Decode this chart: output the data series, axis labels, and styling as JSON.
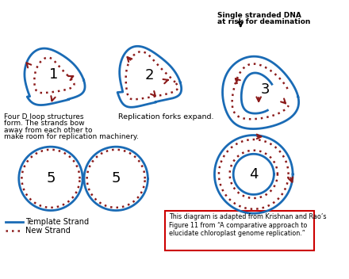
{
  "bg_color": "#ffffff",
  "blue": "#1a6bb5",
  "red": "#8b1a1a",
  "label1": "1",
  "label2": "2",
  "label3": "3",
  "label4": "4",
  "label5a": "5",
  "label5b": "5",
  "text_template": "Template Strand",
  "text_new": "New Strand",
  "text_caption1": "Four D loop structures",
  "text_caption2": "form. The strands bow",
  "text_caption3": "away from each other to",
  "text_caption4": "make room for replication machinery.",
  "text_caption5": "Replication forks expand.",
  "text_caption6": "Single stranded DNA",
  "text_caption7": "at risk for deamination",
  "text_box": "This diagram is adapted from Krishnan and Rao’s\nFigure 11 from “A comparative approach to\nelucidate chloroplast genome replication.”",
  "box_color": "#cc0000"
}
